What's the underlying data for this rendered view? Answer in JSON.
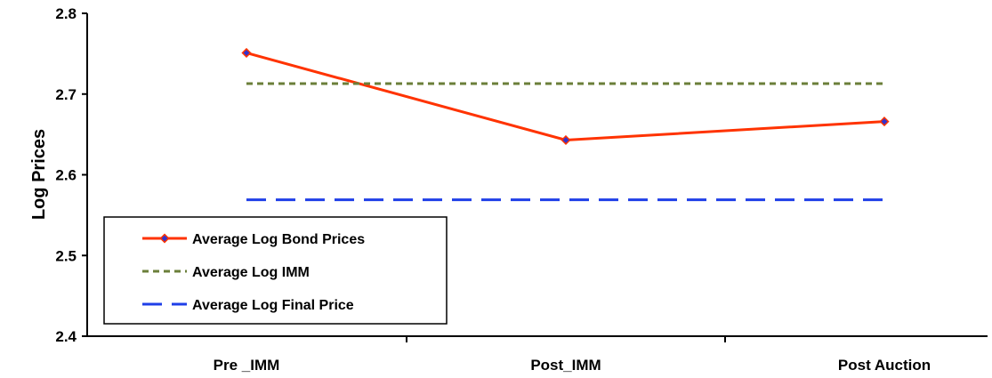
{
  "chart_data": {
    "type": "line",
    "title": "",
    "xlabel": "",
    "ylabel": "Log Prices",
    "categories": [
      "Pre _IMM",
      "Post_IMM",
      "Post Auction"
    ],
    "ylim": [
      2.4,
      2.8
    ],
    "yticks": [
      2.4,
      2.5,
      2.6,
      2.7,
      2.8
    ],
    "grid": false,
    "legend_position": "bottom-left",
    "series": [
      {
        "name": "Average Log Bond Prices",
        "values": [
          2.751,
          2.643,
          2.666
        ],
        "color": "#ff3300",
        "line_style": "solid",
        "marker": "diamond",
        "marker_color": "#3333cc"
      },
      {
        "name": "Average Log IMM",
        "values": [
          2.713,
          2.713,
          2.713
        ],
        "color": "#6b7f3a",
        "line_style": "short-dash"
      },
      {
        "name": "Average Log Final Price",
        "values": [
          2.569,
          2.569,
          2.569
        ],
        "color": "#1f3fe8",
        "line_style": "long-dash"
      }
    ]
  }
}
